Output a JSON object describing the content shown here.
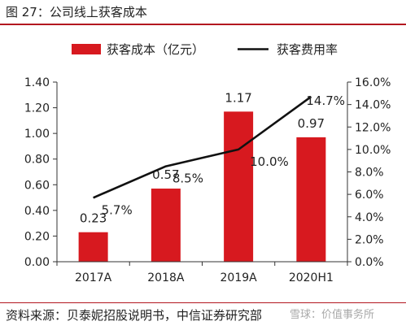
{
  "header": {
    "title": "图 27：公司线上获客成本"
  },
  "footer": {
    "source": "资料来源：贝泰妮招股说明书，中信证券研究部"
  },
  "watermark": {
    "text": "雪球：价值事务所"
  },
  "chart_data": {
    "type": "bar+line",
    "categories": [
      "2017A",
      "2018A",
      "2019A",
      "2020H1"
    ],
    "series": [
      {
        "name": "获客成本（亿元）",
        "type": "bar",
        "axis": "left",
        "color": "#d7191f",
        "values": [
          0.23,
          0.57,
          1.17,
          0.97
        ],
        "labels": [
          "0.23",
          "0.57",
          "1.17",
          "0.97"
        ]
      },
      {
        "name": "获客费用率",
        "type": "line",
        "axis": "right",
        "color": "#111111",
        "values": [
          5.7,
          8.5,
          10.0,
          14.7
        ],
        "labels": [
          "5.7%",
          "8.5%",
          "10.0%",
          "14.7%"
        ]
      }
    ],
    "y_left": {
      "min": 0,
      "max": 1.4,
      "ticks": [
        0,
        0.2,
        0.4,
        0.6,
        0.8,
        1.0,
        1.2,
        1.4
      ],
      "tick_labels": [
        "0.00",
        "0.20",
        "0.40",
        "0.60",
        "0.80",
        "1.00",
        "1.20",
        "1.40"
      ]
    },
    "y_right": {
      "min": 0,
      "max": 16,
      "ticks": [
        0,
        2,
        4,
        6,
        8,
        10,
        12,
        14,
        16
      ],
      "tick_labels": [
        "0.0%",
        "2.0%",
        "4.0%",
        "6.0%",
        "8.0%",
        "10.0%",
        "12.0%",
        "14.0%",
        "16.0%"
      ]
    },
    "legend": {
      "position": "top"
    },
    "grid": false
  }
}
